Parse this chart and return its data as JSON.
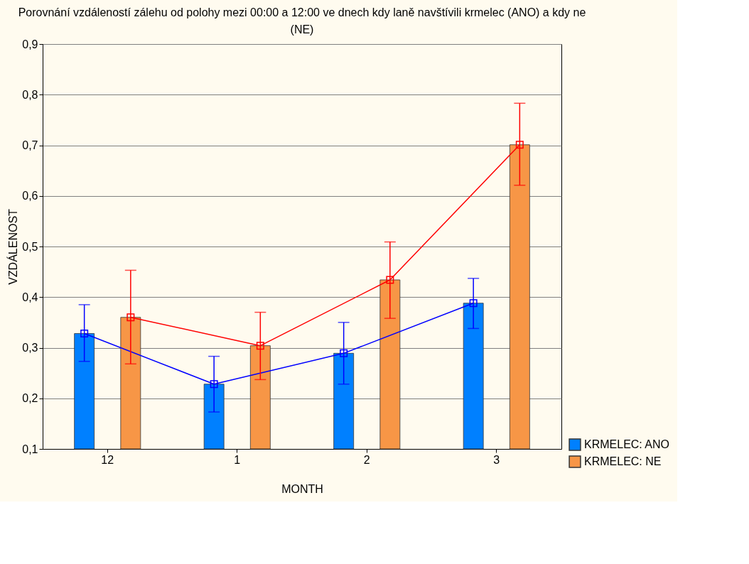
{
  "chart_data": {
    "type": "bar",
    "title": "Porovnání vzdáleností zálehu od polohy mezi 00:00 a 12:00 ve dnech kdy laně navštívili krmelec (ANO) a kdy ne (NE)",
    "xlabel": "MONTH",
    "ylabel": "VZDÁLENOST",
    "categories": [
      "12",
      "1",
      "2",
      "3"
    ],
    "series": [
      {
        "name": "KRMELEC: ANO",
        "color": "#0080ff",
        "values": [
          0.328,
          0.228,
          0.289,
          0.388
        ]
      },
      {
        "name": "KRMELEC: NE",
        "color": "#f79646",
        "values": [
          0.36,
          0.304,
          0.434,
          0.701
        ]
      },
      {
        "type": "line",
        "color": "#0000ff",
        "values": [
          0.328,
          0.228,
          0.289,
          0.388
        ],
        "errors": [
          [
            0.273,
            0.385
          ],
          [
            0.173,
            0.283
          ],
          [
            0.228,
            0.35
          ],
          [
            0.338,
            0.437
          ]
        ]
      },
      {
        "type": "line",
        "color": "#ff0000",
        "values": [
          0.36,
          0.304,
          0.434,
          0.701
        ],
        "errors": [
          [
            0.268,
            0.453
          ],
          [
            0.237,
            0.37
          ],
          [
            0.358,
            0.509
          ],
          [
            0.621,
            0.783
          ]
        ]
      }
    ],
    "ylim": [
      0.1,
      0.9
    ],
    "yticks": [
      {
        "value": 0.1,
        "label": "0,1"
      },
      {
        "value": 0.2,
        "label": "0,2"
      },
      {
        "value": 0.3,
        "label": "0,3"
      },
      {
        "value": 0.4,
        "label": "0,4"
      },
      {
        "value": 0.5,
        "label": "0,5"
      },
      {
        "value": 0.6,
        "label": "0,6"
      },
      {
        "value": 0.7,
        "label": "0,7"
      },
      {
        "value": 0.8,
        "label": "0,8"
      },
      {
        "value": 0.9,
        "label": "0,9"
      }
    ],
    "grid": "y",
    "legend": "bottom right",
    "marker": "square",
    "line_style": "solid"
  }
}
